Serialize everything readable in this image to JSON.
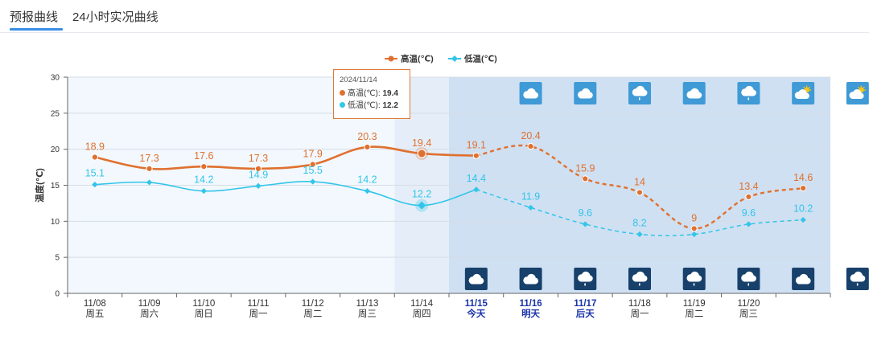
{
  "tabs": [
    {
      "label": "预报曲线",
      "active": true
    },
    {
      "label": "24小时实况曲线",
      "active": false
    }
  ],
  "colors": {
    "high": "#e0702f",
    "low": "#32c5e9",
    "accent_day": "#1a33a8",
    "tab_accent": "#3a8ee6"
  },
  "chart_data": {
    "type": "line",
    "ylabel": "温度(℃)",
    "ylim": [
      0,
      30
    ],
    "yticks": [
      0,
      5,
      10,
      15,
      20,
      25,
      30
    ],
    "grid": true,
    "legend_position": "top-center",
    "categories": [
      {
        "date": "11/08",
        "weekday": "周五",
        "highlight": false
      },
      {
        "date": "11/09",
        "weekday": "周六",
        "highlight": false
      },
      {
        "date": "11/10",
        "weekday": "周日",
        "highlight": false
      },
      {
        "date": "11/11",
        "weekday": "周一",
        "highlight": false
      },
      {
        "date": "11/12",
        "weekday": "周二",
        "highlight": false
      },
      {
        "date": "11/13",
        "weekday": "周三",
        "highlight": false
      },
      {
        "date": "11/14",
        "weekday": "周四",
        "highlight": false
      },
      {
        "date": "11/15",
        "weekday": "今天",
        "highlight": true
      },
      {
        "date": "11/16",
        "weekday": "明天",
        "highlight": true
      },
      {
        "date": "11/17",
        "weekday": "后天",
        "highlight": true
      },
      {
        "date": "11/18",
        "weekday": "周一",
        "highlight": false
      },
      {
        "date": "11/19",
        "weekday": "周二",
        "highlight": false
      },
      {
        "date": "11/20",
        "weekday": "周三",
        "highlight": false
      },
      {
        "date": "",
        "weekday": "",
        "highlight": false
      }
    ],
    "series": [
      {
        "name": "高温(℃)",
        "key": "high",
        "values": [
          18.9,
          17.3,
          17.6,
          17.3,
          17.9,
          20.3,
          19.4,
          19.1,
          20.4,
          15.9,
          14,
          9,
          13.4,
          14.6
        ]
      },
      {
        "name": "低温(℃)",
        "key": "low",
        "values": [
          15.1,
          15.4,
          14.2,
          14.9,
          15.5,
          14.2,
          12.2,
          14.4,
          11.9,
          9.6,
          8.2,
          8.2,
          9.6,
          10.2
        ]
      }
    ],
    "value_labels_high": [
      "18.9",
      "17.3",
      "17.6",
      "17.3",
      "17.9",
      "20.3",
      "19.4",
      "19.1",
      "20.4",
      "15.9",
      "14",
      "9",
      "13.4",
      "14.6"
    ],
    "value_labels_low": [
      "15.1",
      "",
      "14.2",
      "14.9",
      "15.5",
      "14.2",
      "12.2",
      "14.4",
      "11.9",
      "9.6",
      "8.2",
      "",
      "9.6",
      "10.2"
    ],
    "forecast_start_index": 7,
    "selected_index": 6,
    "day_icons": [
      "cloudy-icon",
      "cloudy-icon",
      "light-rain-icon",
      "cloudy-icon",
      "light-rain-icon",
      "partly-cloudy-icon",
      "partly-cloudy-icon"
    ],
    "night_icons": [
      "cloudy-icon",
      "cloudy-icon",
      "light-rain-icon",
      "light-rain-icon",
      "light-rain-icon",
      "light-rain-icon",
      "cloudy-icon",
      "light-rain-icon"
    ]
  },
  "tooltip": {
    "date": "2024/11/14",
    "high_label": "高温(℃): ",
    "high_value": "19.4",
    "low_label": "低温(℃): ",
    "low_value": "12.2"
  }
}
